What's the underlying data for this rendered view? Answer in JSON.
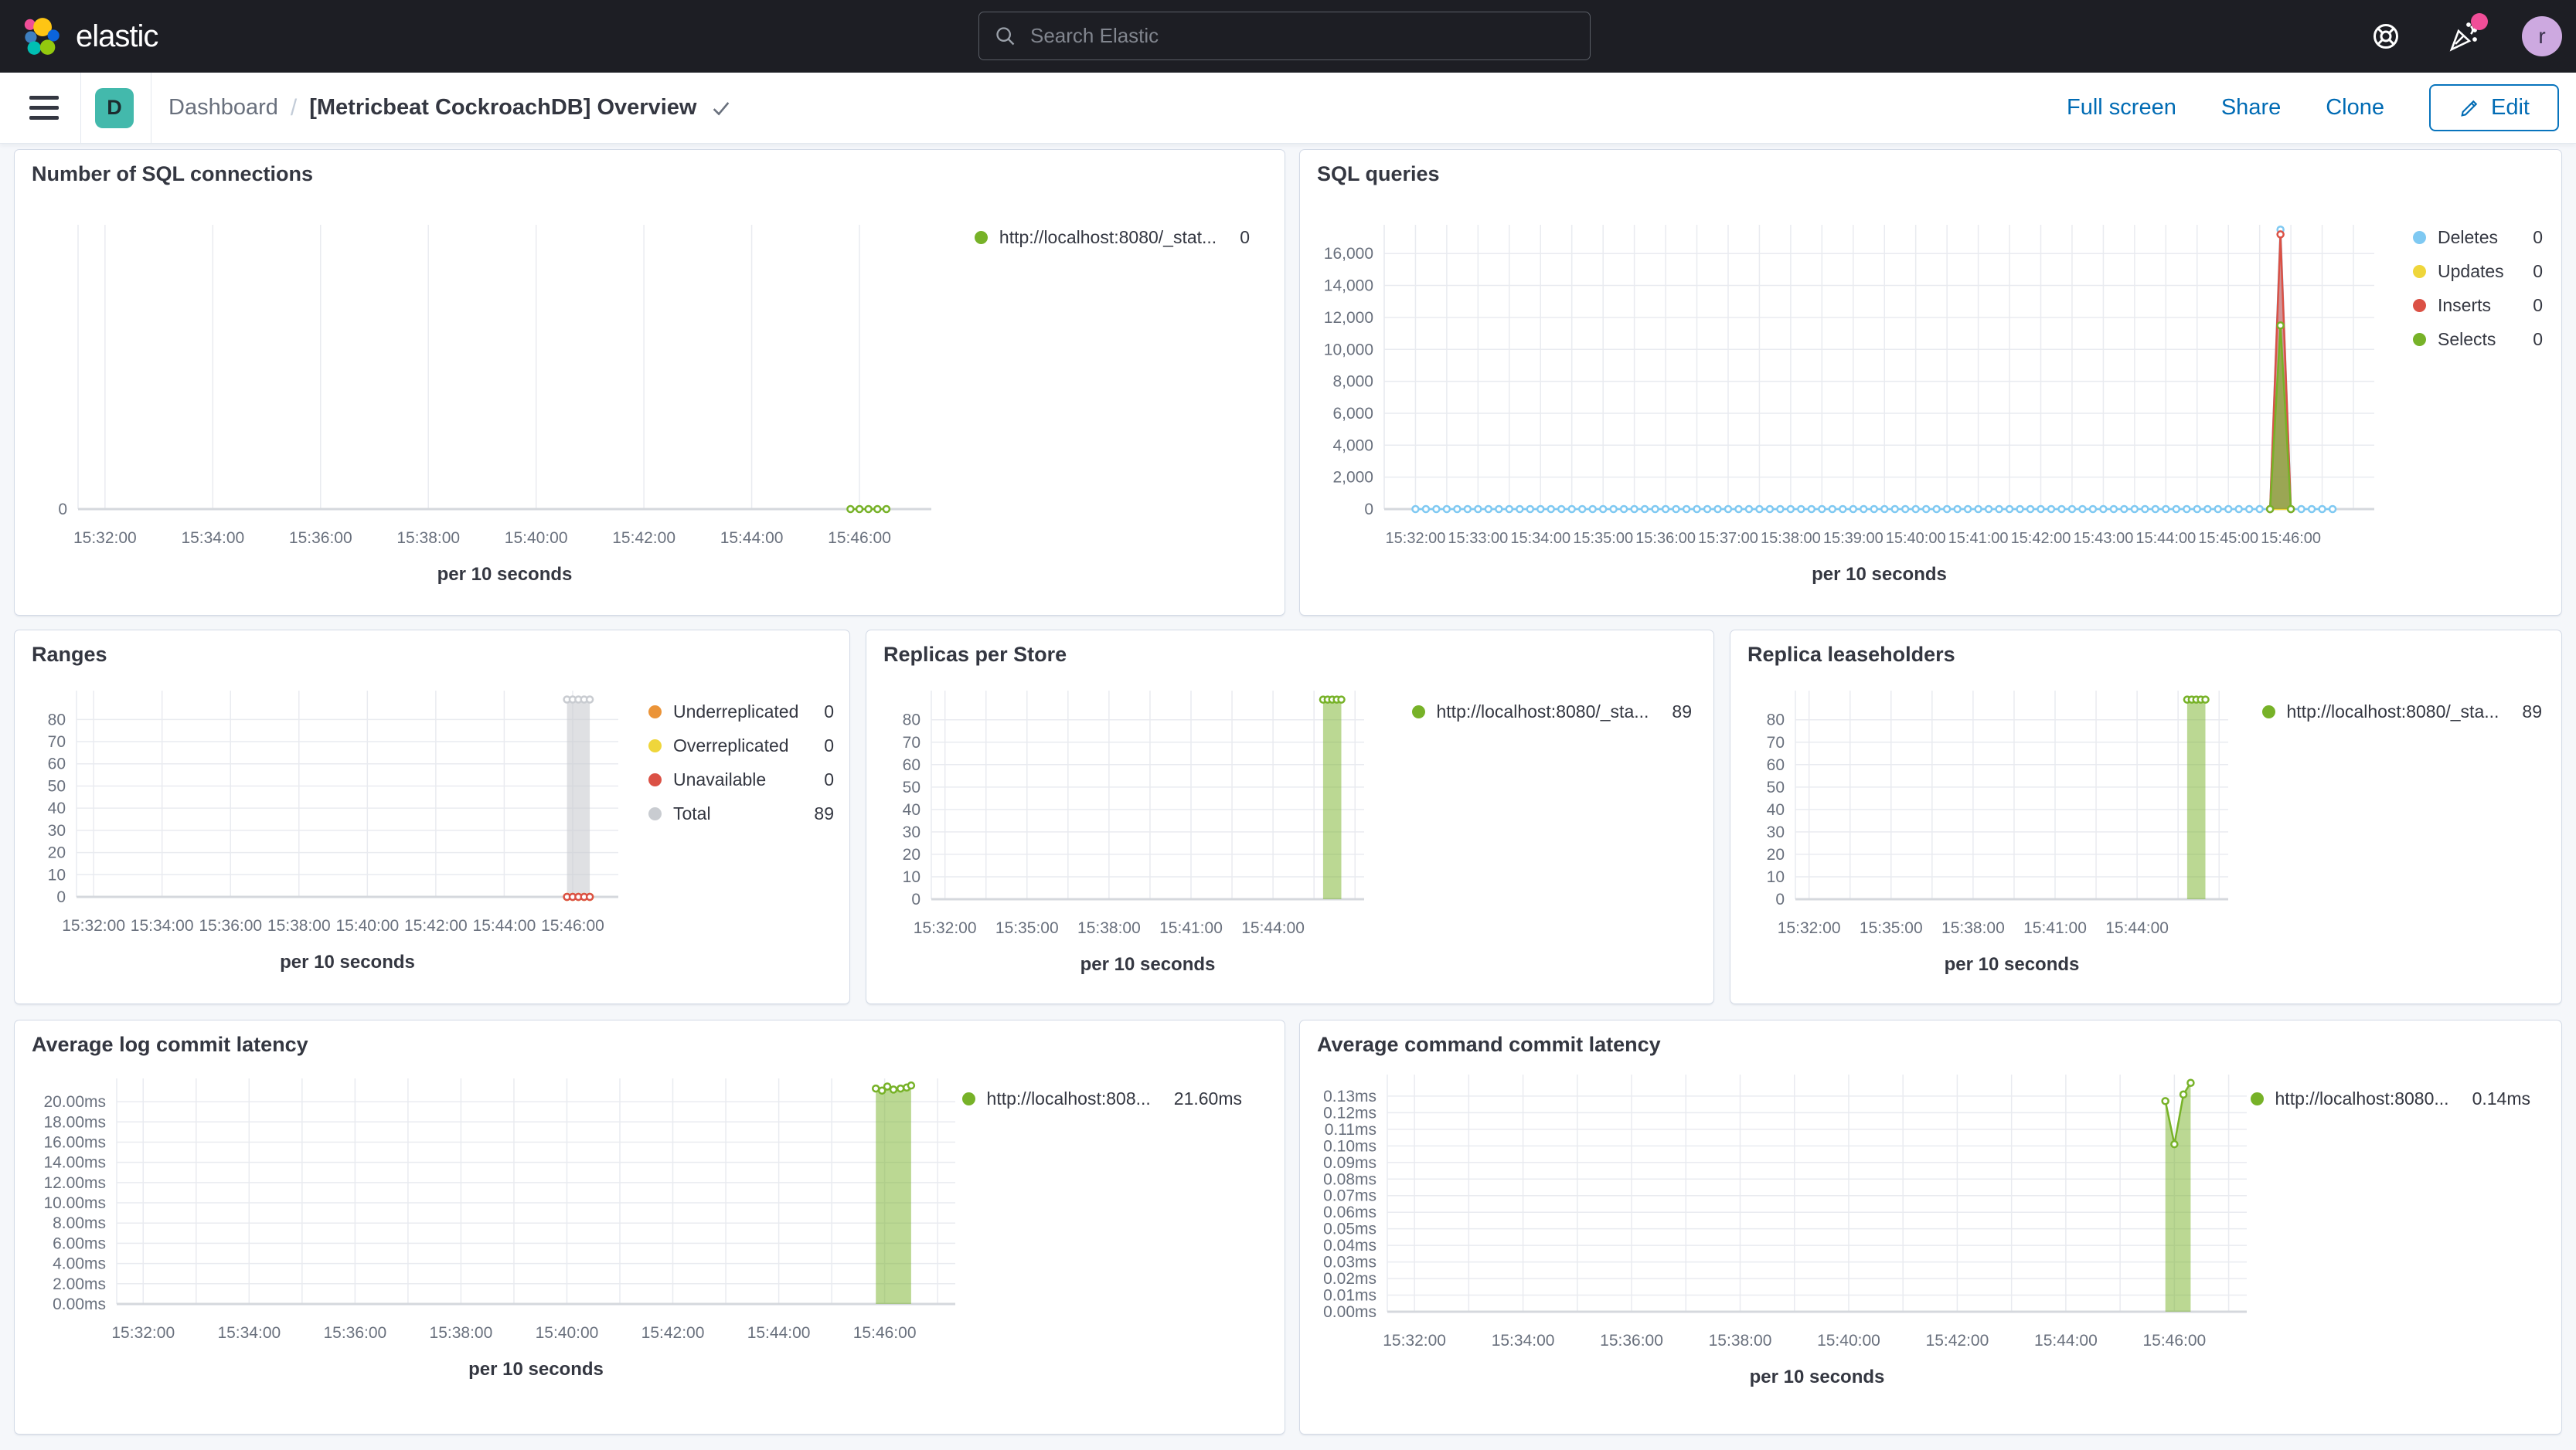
{
  "header": {
    "logo_text": "elastic",
    "search_placeholder": "Search Elastic",
    "avatar_letter": "r"
  },
  "toolbar": {
    "space_letter": "D",
    "breadcrumb_root": "Dashboard",
    "breadcrumb_sep": "/",
    "title": "[Metricbeat CockroachDB] Overview",
    "actions": [
      "Full screen",
      "Share",
      "Clone"
    ],
    "edit_label": "Edit"
  },
  "colors": {
    "topbar_bg": "#1D1E24",
    "link_blue": "#006BB4",
    "notification_pink": "#F04E98",
    "space_badge_teal": "#43B9AC",
    "avatar_purple": "#CDA9E0",
    "series_green": "#77B228",
    "series_blue": "#7FC9F2",
    "series_yellow": "#EFD63B",
    "series_red": "#DB5145",
    "series_orange": "#EB9438",
    "series_gray": "#C9CCD1"
  },
  "panels": [
    {
      "id": "sql-connections",
      "title": "Number of SQL connections",
      "legend": [
        {
          "label": "http://localhost:8080/_stat...",
          "value": "0",
          "color": "#77B228"
        }
      ],
      "chart_data": {
        "type": "line",
        "x_axis_label": "per 10 seconds",
        "x_domain": [
          "15:31:30",
          "15:47:20"
        ],
        "x_ticks": [
          "15:32:00",
          "15:34:00",
          "15:36:00",
          "15:38:00",
          "15:40:00",
          "15:42:00",
          "15:44:00",
          "15:46:00"
        ],
        "y_domain": [
          0,
          10
        ],
        "y_ticks": [
          {
            "v": 0,
            "label": "0"
          }
        ],
        "series": [
          {
            "name": "http://localhost:8080/_stat...",
            "color": "#77B228",
            "mode": "line",
            "markers": true,
            "flat": {
              "from": "15:45:50",
              "to": "15:46:30",
              "step_s": 10,
              "value": 0
            }
          }
        ]
      }
    },
    {
      "id": "sql-queries",
      "title": "SQL queries",
      "legend": [
        {
          "label": "Deletes",
          "value": "0",
          "color": "#7FC9F2"
        },
        {
          "label": "Updates",
          "value": "0",
          "color": "#EFD63B"
        },
        {
          "label": "Inserts",
          "value": "0",
          "color": "#DB5145"
        },
        {
          "label": "Selects",
          "value": "0",
          "color": "#77B228"
        }
      ],
      "chart_data": {
        "type": "area",
        "x_axis_label": "per 10 seconds",
        "x_domain": [
          "15:31:30",
          "15:47:20"
        ],
        "x_ticks": [
          "15:32:00",
          "15:33:00",
          "15:34:00",
          "15:35:00",
          "15:36:00",
          "15:37:00",
          "15:38:00",
          "15:39:00",
          "15:40:00",
          "15:41:00",
          "15:42:00",
          "15:43:00",
          "15:44:00",
          "15:45:00",
          "15:46:00"
        ],
        "y_domain": [
          0,
          17800
        ],
        "y_ticks": [
          {
            "v": 0,
            "label": "0"
          },
          {
            "v": 2000,
            "label": "2,000"
          },
          {
            "v": 4000,
            "label": "4,000"
          },
          {
            "v": 6000,
            "label": "6,000"
          },
          {
            "v": 8000,
            "label": "8,000"
          },
          {
            "v": 10000,
            "label": "10,000"
          },
          {
            "v": 12000,
            "label": "12,000"
          },
          {
            "v": 14000,
            "label": "14,000"
          },
          {
            "v": 16000,
            "label": "16,000"
          }
        ],
        "series": [
          {
            "name": "Deletes",
            "color": "#7FC9F2",
            "mode": "area",
            "markers": true,
            "fill_opacity": 0.45,
            "flat": {
              "from": "15:32:00",
              "to": "15:46:40",
              "step_s": 10,
              "value": 0
            },
            "points": [
              [
                "15:45:50",
                17500
              ]
            ]
          },
          {
            "name": "Updates",
            "color": "#EFD63B",
            "mode": "line",
            "markers": false,
            "points": [
              [
                "15:45:40",
                0
              ],
              [
                "15:46:00",
                0
              ]
            ]
          },
          {
            "name": "Inserts",
            "color": "#DB5145",
            "mode": "area",
            "markers": true,
            "fill_opacity": 0.55,
            "points": [
              [
                "15:45:40",
                0
              ],
              [
                "15:45:50",
                17200
              ],
              [
                "15:46:00",
                0
              ]
            ]
          },
          {
            "name": "Selects",
            "color": "#77B228",
            "mode": "area",
            "markers": true,
            "fill_opacity": 0.6,
            "points": [
              [
                "15:45:40",
                0
              ],
              [
                "15:45:50",
                11500
              ],
              [
                "15:46:00",
                0
              ]
            ]
          }
        ]
      }
    },
    {
      "id": "ranges",
      "title": "Ranges",
      "legend": [
        {
          "label": "Underreplicated",
          "value": "0",
          "color": "#EB9438"
        },
        {
          "label": "Overreplicated",
          "value": "0",
          "color": "#EFD63B"
        },
        {
          "label": "Unavailable",
          "value": "0",
          "color": "#DB5145"
        },
        {
          "label": "Total",
          "value": "89",
          "color": "#C9CCD1"
        }
      ],
      "chart_data": {
        "type": "area",
        "x_axis_label": "per 10 seconds",
        "x_domain": [
          "15:31:30",
          "15:47:20"
        ],
        "x_ticks": [
          "15:32:00",
          "15:34:00",
          "15:36:00",
          "15:38:00",
          "15:40:00",
          "15:42:00",
          "15:44:00",
          "15:46:00"
        ],
        "y_domain": [
          0,
          93
        ],
        "y_ticks": [
          {
            "v": 0,
            "label": "0"
          },
          {
            "v": 10,
            "label": "10"
          },
          {
            "v": 20,
            "label": "20"
          },
          {
            "v": 30,
            "label": "30"
          },
          {
            "v": 40,
            "label": "40"
          },
          {
            "v": 50,
            "label": "50"
          },
          {
            "v": 60,
            "label": "60"
          },
          {
            "v": 70,
            "label": "70"
          },
          {
            "v": 80,
            "label": "80"
          }
        ],
        "series": [
          {
            "name": "Total",
            "color": "#C9CCD1",
            "mode": "area",
            "markers": true,
            "fill_opacity": 0.6,
            "flat": {
              "from": "15:45:50",
              "to": "15:46:30",
              "step_s": 10,
              "value": 89
            }
          },
          {
            "name": "Underreplicated",
            "color": "#EB9438",
            "mode": "line",
            "markers": true,
            "flat": {
              "from": "15:45:50",
              "to": "15:46:30",
              "step_s": 10,
              "value": 0
            }
          },
          {
            "name": "Overreplicated",
            "color": "#EFD63B",
            "mode": "line",
            "markers": true,
            "flat": {
              "from": "15:45:50",
              "to": "15:46:30",
              "step_s": 10,
              "value": 0
            }
          },
          {
            "name": "Unavailable",
            "color": "#DB5145",
            "mode": "line",
            "markers": true,
            "flat": {
              "from": "15:45:50",
              "to": "15:46:30",
              "step_s": 10,
              "value": 0
            }
          }
        ]
      }
    },
    {
      "id": "replicas-per-store",
      "title": "Replicas per Store",
      "legend": [
        {
          "label": "http://localhost:8080/_sta...",
          "value": "89",
          "color": "#77B228"
        }
      ],
      "chart_data": {
        "type": "area",
        "x_axis_label": "per 10 seconds",
        "x_domain": [
          "15:31:30",
          "15:47:20"
        ],
        "x_ticks": [
          "15:32:00",
          "15:35:00",
          "15:38:00",
          "15:41:00",
          "15:44:00"
        ],
        "y_domain": [
          0,
          93
        ],
        "y_ticks": [
          {
            "v": 0,
            "label": "0"
          },
          {
            "v": 10,
            "label": "10"
          },
          {
            "v": 20,
            "label": "20"
          },
          {
            "v": 30,
            "label": "30"
          },
          {
            "v": 40,
            "label": "40"
          },
          {
            "v": 50,
            "label": "50"
          },
          {
            "v": 60,
            "label": "60"
          },
          {
            "v": 70,
            "label": "70"
          },
          {
            "v": 80,
            "label": "80"
          }
        ],
        "series": [
          {
            "name": "http://localhost:8080/_sta...",
            "color": "#77B228",
            "mode": "area",
            "markers": true,
            "fill_opacity": 0.5,
            "flat": {
              "from": "15:45:50",
              "to": "15:46:30",
              "step_s": 10,
              "value": 89
            }
          }
        ]
      }
    },
    {
      "id": "replica-leaseholders",
      "title": "Replica leaseholders",
      "legend": [
        {
          "label": "http://localhost:8080/_sta...",
          "value": "89",
          "color": "#77B228"
        }
      ],
      "chart_data": {
        "type": "area",
        "x_axis_label": "per 10 seconds",
        "x_domain": [
          "15:31:30",
          "15:47:20"
        ],
        "x_ticks": [
          "15:32:00",
          "15:35:00",
          "15:38:00",
          "15:41:00",
          "15:44:00"
        ],
        "y_domain": [
          0,
          93
        ],
        "y_ticks": [
          {
            "v": 0,
            "label": "0"
          },
          {
            "v": 10,
            "label": "10"
          },
          {
            "v": 20,
            "label": "20"
          },
          {
            "v": 30,
            "label": "30"
          },
          {
            "v": 40,
            "label": "40"
          },
          {
            "v": 50,
            "label": "50"
          },
          {
            "v": 60,
            "label": "60"
          },
          {
            "v": 70,
            "label": "70"
          },
          {
            "v": 80,
            "label": "80"
          }
        ],
        "series": [
          {
            "name": "http://localhost:8080/_sta...",
            "color": "#77B228",
            "mode": "area",
            "markers": true,
            "fill_opacity": 0.5,
            "flat": {
              "from": "15:45:50",
              "to": "15:46:30",
              "step_s": 10,
              "value": 89
            }
          }
        ]
      }
    },
    {
      "id": "avg-log-commit-latency",
      "title": "Average log commit latency",
      "legend": [
        {
          "label": "http://localhost:808...",
          "value": "21.60ms",
          "color": "#77B228"
        }
      ],
      "chart_data": {
        "type": "area",
        "x_axis_label": "per 10 seconds",
        "x_domain": [
          "15:31:30",
          "15:47:20"
        ],
        "x_ticks": [
          "15:32:00",
          "15:34:00",
          "15:36:00",
          "15:38:00",
          "15:40:00",
          "15:42:00",
          "15:44:00",
          "15:46:00"
        ],
        "y_domain": [
          0,
          22.3
        ],
        "y_ticks": [
          {
            "v": 0,
            "label": "0.00ms"
          },
          {
            "v": 2,
            "label": "2.00ms"
          },
          {
            "v": 4,
            "label": "4.00ms"
          },
          {
            "v": 6,
            "label": "6.00ms"
          },
          {
            "v": 8,
            "label": "8.00ms"
          },
          {
            "v": 10,
            "label": "10.00ms"
          },
          {
            "v": 12,
            "label": "12.00ms"
          },
          {
            "v": 14,
            "label": "14.00ms"
          },
          {
            "v": 16,
            "label": "16.00ms"
          },
          {
            "v": 18,
            "label": "18.00ms"
          },
          {
            "v": 20,
            "label": "20.00ms"
          }
        ],
        "series": [
          {
            "name": "http://localhost:808...",
            "color": "#77B228",
            "mode": "area",
            "markers": true,
            "fill_opacity": 0.5,
            "points": [
              [
                "15:45:50",
                21.3
              ],
              [
                "15:45:57",
                21.1
              ],
              [
                "15:46:03",
                21.5
              ],
              [
                "15:46:10",
                21.2
              ],
              [
                "15:46:18",
                21.3
              ],
              [
                "15:46:25",
                21.4
              ],
              [
                "15:46:30",
                21.6
              ]
            ]
          }
        ]
      }
    },
    {
      "id": "avg-command-commit-latency",
      "title": "Average command commit latency",
      "legend": [
        {
          "label": "http://localhost:8080...",
          "value": "0.14ms",
          "color": "#77B228"
        }
      ],
      "chart_data": {
        "type": "area",
        "x_axis_label": "per 10 seconds",
        "x_domain": [
          "15:31:30",
          "15:47:20"
        ],
        "x_ticks": [
          "15:32:00",
          "15:34:00",
          "15:36:00",
          "15:38:00",
          "15:40:00",
          "15:42:00",
          "15:44:00",
          "15:46:00"
        ],
        "y_domain": [
          0,
          0.143
        ],
        "y_ticks": [
          {
            "v": 0,
            "label": "0.00ms"
          },
          {
            "v": 0.01,
            "label": "0.01ms"
          },
          {
            "v": 0.02,
            "label": "0.02ms"
          },
          {
            "v": 0.03,
            "label": "0.03ms"
          },
          {
            "v": 0.04,
            "label": "0.04ms"
          },
          {
            "v": 0.05,
            "label": "0.05ms"
          },
          {
            "v": 0.06,
            "label": "0.06ms"
          },
          {
            "v": 0.07,
            "label": "0.07ms"
          },
          {
            "v": 0.08,
            "label": "0.08ms"
          },
          {
            "v": 0.09,
            "label": "0.09ms"
          },
          {
            "v": 0.1,
            "label": "0.10ms"
          },
          {
            "v": 0.11,
            "label": "0.11ms"
          },
          {
            "v": 0.12,
            "label": "0.12ms"
          },
          {
            "v": 0.13,
            "label": "0.13ms"
          }
        ],
        "series": [
          {
            "name": "http://localhost:8080...",
            "color": "#77B228",
            "mode": "area",
            "markers": true,
            "fill_opacity": 0.5,
            "points": [
              [
                "15:45:50",
                0.127
              ],
              [
                "15:46:00",
                0.101
              ],
              [
                "15:46:10",
                0.131
              ],
              [
                "15:46:18",
                0.138
              ]
            ]
          }
        ]
      }
    }
  ]
}
